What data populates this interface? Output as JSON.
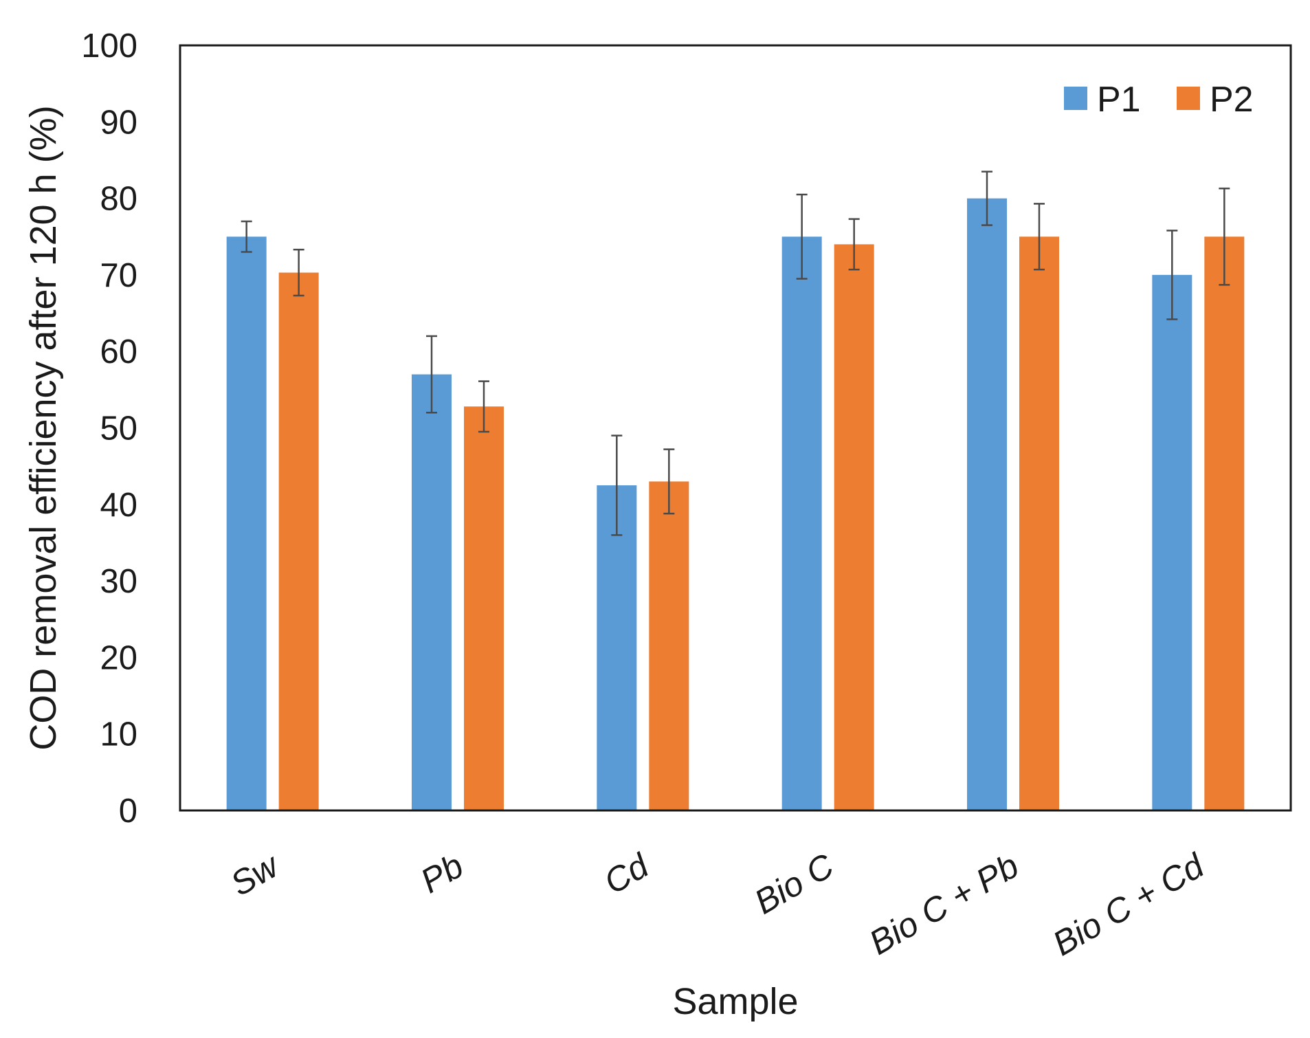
{
  "chart_data": {
    "type": "bar",
    "title": "",
    "xlabel": "Sample",
    "ylabel": "COD removal efficiency after 120 h (%)",
    "ylim": [
      0,
      100
    ],
    "yticks": [
      0,
      10,
      20,
      30,
      40,
      50,
      60,
      70,
      80,
      90,
      100
    ],
    "grid": false,
    "legend_position": "top-right",
    "categories": [
      "Sw",
      "Pb",
      "Cd",
      "Bio C",
      "Bio C + Pb",
      "Bio C + Cd"
    ],
    "series": [
      {
        "name": "P1",
        "color": "#5B9BD5",
        "values": [
          75,
          57,
          42.5,
          75,
          80,
          70
        ],
        "errors": [
          2,
          5,
          6.5,
          5.5,
          3.5,
          5.8
        ]
      },
      {
        "name": "P2",
        "color": "#ED7D31",
        "values": [
          70.3,
          52.8,
          43,
          74,
          75,
          75
        ],
        "errors": [
          3,
          3.3,
          4.2,
          3.3,
          4.3,
          6.3
        ]
      }
    ]
  }
}
